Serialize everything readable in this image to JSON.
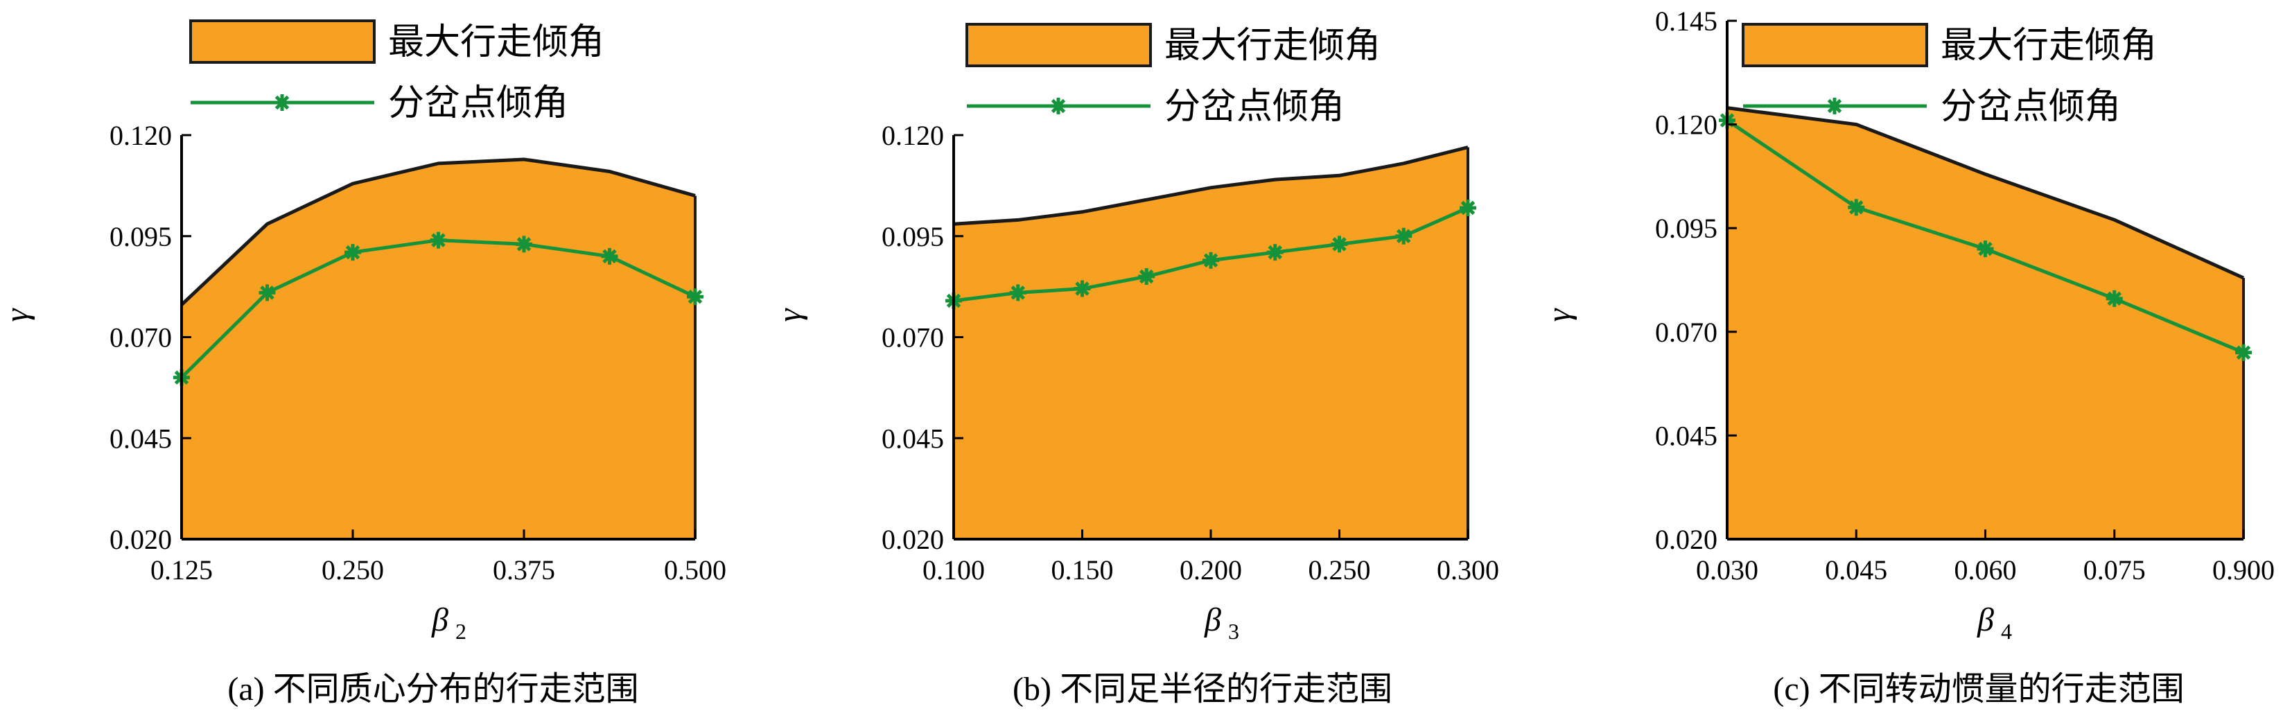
{
  "colors": {
    "fill": "#F7A021",
    "fill_stroke": "#1a1a1a",
    "line": "#14933a",
    "axis": "#000000"
  },
  "chart_data": [
    {
      "type": "area",
      "caption": "(a) 不同质心分布的行走范围",
      "xlabel": "β",
      "xlabel_sub": "2",
      "ylabel": "γ",
      "ylim": [
        0.02,
        0.12
      ],
      "yticks": [
        "0.020",
        "0.045",
        "0.070",
        "0.095",
        "0.120"
      ],
      "xticks": [
        "0.125",
        "0.250",
        "0.375",
        "0.500"
      ],
      "x": [
        0.125,
        0.1875,
        0.25,
        0.3125,
        0.375,
        0.4375,
        0.5
      ],
      "legend": {
        "placement": "top-left",
        "entries": [
          "最大行走倾角",
          "分岔点倾角"
        ]
      },
      "series": [
        {
          "name": "最大行走倾角",
          "kind": "area",
          "values": [
            0.078,
            0.098,
            0.108,
            0.113,
            0.114,
            0.111,
            0.105
          ]
        },
        {
          "name": "分岔点倾角",
          "kind": "line",
          "values": [
            0.06,
            0.081,
            0.091,
            0.094,
            0.093,
            0.09,
            0.08
          ]
        }
      ]
    },
    {
      "type": "area",
      "caption": "(b) 不同足半径的行走范围",
      "xlabel": "β",
      "xlabel_sub": "3",
      "ylabel": "γ",
      "ylim": [
        0.02,
        0.12
      ],
      "yticks": [
        "0.020",
        "0.045",
        "0.070",
        "0.095",
        "0.120"
      ],
      "xticks": [
        "0.100",
        "0.150",
        "0.200",
        "0.250",
        "0.300"
      ],
      "x": [
        0.1,
        0.125,
        0.15,
        0.175,
        0.2,
        0.225,
        0.25,
        0.275,
        0.3
      ],
      "legend": {
        "placement": "top-left",
        "entries": [
          "最大行走倾角",
          "分岔点倾角"
        ]
      },
      "series": [
        {
          "name": "最大行走倾角",
          "kind": "area",
          "values": [
            0.098,
            0.099,
            0.101,
            0.104,
            0.107,
            0.109,
            0.11,
            0.113,
            0.117
          ]
        },
        {
          "name": "分岔点倾角",
          "kind": "line",
          "values": [
            0.079,
            0.081,
            0.082,
            0.085,
            0.089,
            0.091,
            0.093,
            0.095,
            0.102
          ]
        }
      ]
    },
    {
      "type": "area",
      "caption": "(c) 不同转动惯量的行走范围",
      "xlabel": "β",
      "xlabel_sub": "4",
      "ylabel": "γ",
      "ylim": [
        0.02,
        0.145
      ],
      "yticks": [
        "0.020",
        "0.045",
        "0.070",
        "0.095",
        "0.120",
        "0.145"
      ],
      "xticks": [
        "0.030",
        "0.045",
        "0.060",
        "0.075",
        "0.900"
      ],
      "x": [
        0.03,
        0.045,
        0.06,
        0.075,
        0.9
      ],
      "legend": {
        "placement": "top-left",
        "entries": [
          "最大行走倾角",
          "分岔点倾角"
        ]
      },
      "series": [
        {
          "name": "最大行走倾角",
          "kind": "area",
          "values": [
            0.124,
            0.12,
            0.108,
            0.097,
            0.083
          ]
        },
        {
          "name": "分岔点倾角",
          "kind": "line",
          "values": [
            0.121,
            0.1,
            0.09,
            0.078,
            0.065
          ]
        }
      ]
    }
  ]
}
